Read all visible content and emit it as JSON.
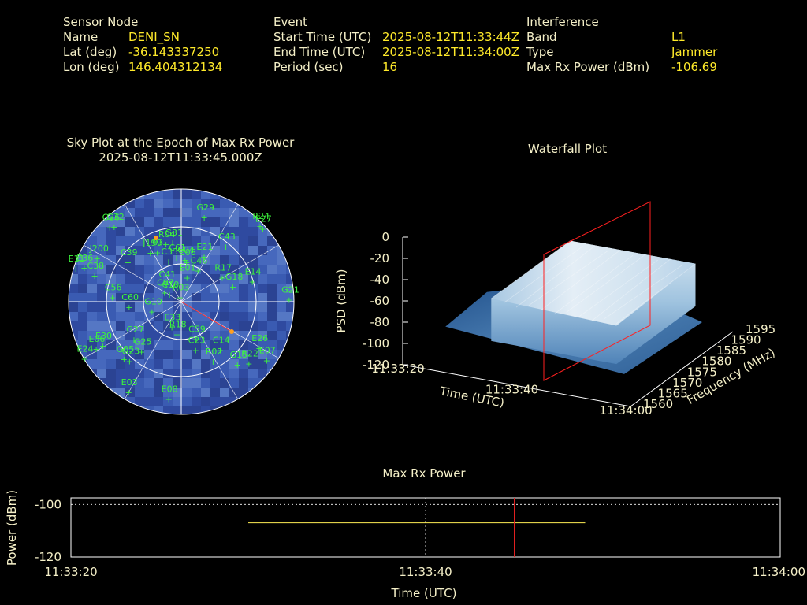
{
  "sensor": {
    "heading": "Sensor Node",
    "name_label": "Name",
    "name": "DENI_SN",
    "lat_label": "Lat (deg)",
    "lat": "-36.143337250",
    "lon_label": "Lon (deg)",
    "lon": "146.404312134"
  },
  "event": {
    "heading": "Event",
    "start_label": "Start Time (UTC)",
    "start": "2025-08-12T11:33:44Z",
    "end_label": "End Time (UTC)",
    "end": "2025-08-12T11:34:00Z",
    "period_label": "Period (sec)",
    "period": "16"
  },
  "interference": {
    "heading": "Interference",
    "band_label": "Band",
    "band": "L1",
    "type_label": "Type",
    "type": "Jammer",
    "max_label": "Max Rx Power (dBm)",
    "max": "-106.69"
  },
  "chart_data": [
    {
      "type": "scatter",
      "title": "Sky Plot at the Epoch of Max Rx Power",
      "subtitle": "2025-08-12T11:33:45.000Z",
      "projection": "polar",
      "satellites": [
        {
          "id": "G29",
          "az": 14,
          "el": 16
        },
        {
          "id": "G26",
          "az": 318,
          "el": 4
        },
        {
          "id": "G32",
          "az": 320,
          "el": 6
        },
        {
          "id": "R24",
          "az": 44,
          "el": 0
        },
        {
          "id": "E27",
          "az": 46,
          "el": 0
        },
        {
          "id": "R04",
          "az": 346,
          "el": 38
        },
        {
          "id": "G31",
          "az": 352,
          "el": 38
        },
        {
          "id": "C43",
          "az": 36,
          "el": 30
        },
        {
          "id": "I03",
          "az": 336,
          "el": 42
        },
        {
          "id": "J199",
          "az": 330,
          "el": 40
        },
        {
          "id": "C33",
          "az": 344,
          "el": 52
        },
        {
          "id": "C61",
          "az": 354,
          "el": 50
        },
        {
          "id": "C04",
          "az": 4,
          "el": 52
        },
        {
          "id": "C06",
          "az": 6,
          "el": 54
        },
        {
          "id": "E21",
          "az": 24,
          "el": 46
        },
        {
          "id": "C39",
          "az": 310,
          "el": 34
        },
        {
          "id": "C46",
          "az": 24,
          "el": 58
        },
        {
          "id": "E11",
          "az": 290,
          "el": 0
        },
        {
          "id": "E36",
          "az": 292,
          "el": 6
        },
        {
          "id": "J200",
          "az": 300,
          "el": 12
        },
        {
          "id": "C38",
          "az": 290,
          "el": 16
        },
        {
          "id": "C41",
          "az": 326,
          "el": 68
        },
        {
          "id": "E01",
          "az": 10,
          "el": 66
        },
        {
          "id": "R17",
          "az": 54,
          "el": 50
        },
        {
          "id": "E14",
          "az": 70,
          "el": 30
        },
        {
          "id": "C07",
          "az": 310,
          "el": 72
        },
        {
          "id": "C10",
          "az": 316,
          "el": 76
        },
        {
          "id": "R03",
          "az": 350,
          "el": 82
        },
        {
          "id": "G18",
          "az": 68,
          "el": 46
        },
        {
          "id": "C56",
          "az": 278,
          "el": 34
        },
        {
          "id": "C60",
          "az": 270,
          "el": 48
        },
        {
          "id": "G10",
          "az": 262,
          "el": 66
        },
        {
          "id": "G21",
          "az": 86,
          "el": 4
        },
        {
          "id": "E30",
          "az": 244,
          "el": 20
        },
        {
          "id": "E06",
          "az": 244,
          "el": 14
        },
        {
          "id": "G27",
          "az": 236,
          "el": 44
        },
        {
          "id": "E33",
          "az": 206,
          "el": 72
        },
        {
          "id": "R18",
          "az": 190,
          "el": 68
        },
        {
          "id": "C59",
          "az": 156,
          "el": 62
        },
        {
          "id": "C23",
          "az": 162,
          "el": 54
        },
        {
          "id": "C14",
          "az": 138,
          "el": 44
        },
        {
          "id": "E26",
          "az": 118,
          "el": 20
        },
        {
          "id": "E07",
          "az": 122,
          "el": 10
        },
        {
          "id": "E24",
          "az": 242,
          "el": 2
        },
        {
          "id": "R02",
          "az": 150,
          "el": 40
        },
        {
          "id": "G15",
          "az": 136,
          "el": 26
        },
        {
          "id": "R22",
          "az": 130,
          "el": 20
        },
        {
          "id": "G25",
          "az": 222,
          "el": 42
        },
        {
          "id": "G05",
          "az": 228,
          "el": 28
        },
        {
          "id": "G23",
          "az": 224,
          "el": 30
        },
        {
          "id": "E03",
          "az": 212,
          "el": 10
        },
        {
          "id": "E08",
          "az": 188,
          "el": 16
        }
      ]
    },
    {
      "type": "area",
      "title": "Waterfall Plot",
      "xlabel": "Time (UTC)",
      "ylabel": "Frequency (MHz)",
      "zlabel": "PSD (dBm)",
      "x_ticks": [
        "11:33:20",
        "11:33:40",
        "11:34:00"
      ],
      "y_ticks": [
        1560,
        1565,
        1570,
        1575,
        1580,
        1585,
        1590,
        1595
      ],
      "z_ticks": [
        0,
        -20,
        -40,
        -60,
        -80,
        -100,
        -120
      ],
      "zlim": [
        -120,
        0
      ],
      "noise_floor_dbm": -90,
      "jammer": {
        "start_s": 14,
        "end_s": 36,
        "freq_mhz": [
          1563,
          1590
        ],
        "peak_dbm": -50
      },
      "marker_time": "11:33:45"
    },
    {
      "type": "line",
      "title": "Max Rx Power",
      "xlabel": "Time (UTC)",
      "ylabel": "Power (dBm)",
      "x_ticks": [
        "11:33:20",
        "11:33:40",
        "11:34:00"
      ],
      "y_ticks": [
        -100,
        -120
      ],
      "xlim_s": [
        0,
        40
      ],
      "ylim": [
        -120,
        -97.5
      ],
      "series": [
        {
          "x_start_s": 10,
          "x_end_s": 29,
          "y": -107
        }
      ],
      "marker_time_s": 25
    }
  ]
}
